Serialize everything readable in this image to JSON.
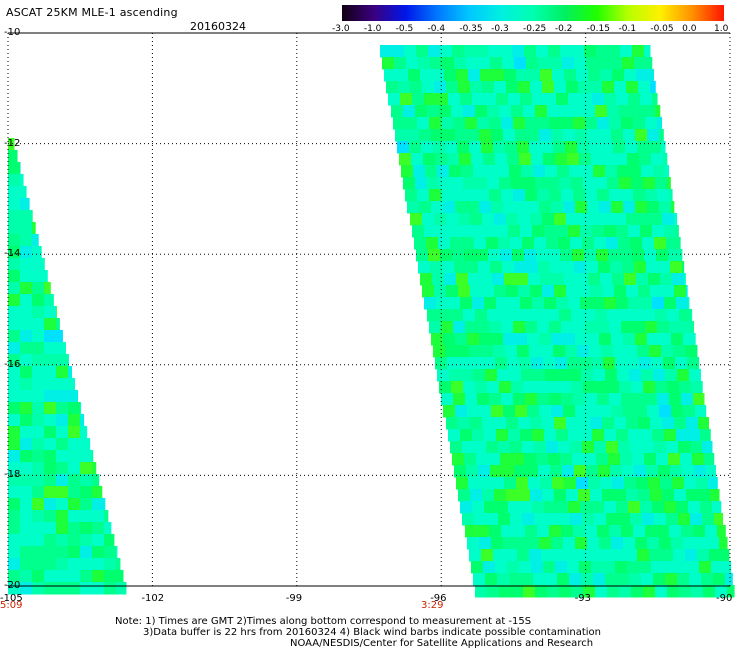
{
  "header": {
    "title": "ASCAT 25KM MLE-1 ascending",
    "date": "20160324"
  },
  "colorbar": {
    "labels": [
      "-3.0",
      "-1.0",
      "-0.5",
      "-0.4",
      "-0.35",
      "-0.3",
      "-0.25",
      "-0.2",
      "-0.15",
      "-0.1",
      "-0.05",
      "0.0",
      "1.0"
    ],
    "colors": [
      "#120012",
      "#3a0080",
      "#0016e8",
      "#0078ff",
      "#00c8ff",
      "#00f0e0",
      "#00ffb0",
      "#00f060",
      "#20ff00",
      "#b8ff00",
      "#fff000",
      "#ff9000",
      "#ff1400"
    ]
  },
  "map": {
    "y_ticks": [
      "-10",
      "-12",
      "-14",
      "-16",
      "-18",
      "-20"
    ],
    "x_ticks": [
      "-105",
      "-102",
      "-99",
      "-96",
      "-93",
      "-90"
    ],
    "times": [
      "5:09",
      "3:29"
    ],
    "lat_range": [
      -20,
      -10
    ],
    "lon_range": [
      -105,
      -90
    ]
  },
  "notes": {
    "line1": "Note: 1) Times are GMT 2)Times along bottom correspond to measurement at -15S",
    "line2": "3)Data buffer is 22 hrs from 20160324 4) Black wind barbs indicate possible contamination",
    "line3": "NOAA/NESDIS/Center for Satellite Applications and Research"
  }
}
